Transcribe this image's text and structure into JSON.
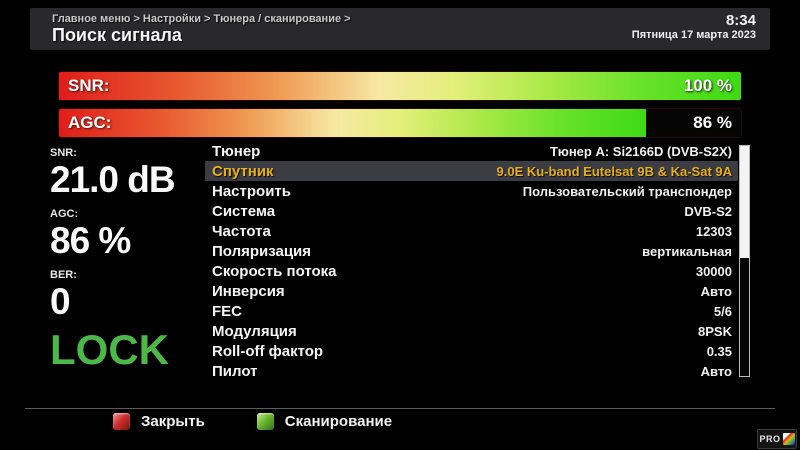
{
  "header": {
    "breadcrumb": "Главное меню > Настройки > Тюнера / сканирование >",
    "title": "Поиск сигнала",
    "time": "8:34",
    "date": "Пятница 17 марта 2023"
  },
  "gauges": [
    {
      "id": "snr",
      "label": "SNR:",
      "percent": 100,
      "percent_text": "100 %"
    },
    {
      "id": "agc",
      "label": "AGC:",
      "percent": 86,
      "percent_text": "86 %"
    }
  ],
  "readouts": [
    {
      "label": "SNR:",
      "value": "21.0 dB"
    },
    {
      "label": "AGC:",
      "value": "86 %"
    },
    {
      "label": "BER:",
      "value": "0"
    }
  ],
  "lock_status": "LOCK",
  "settings": {
    "rows": [
      {
        "label": "Тюнер",
        "value": "Тюнер A: Si2166D (DVB-S2X)",
        "selected": false
      },
      {
        "label": "Спутник",
        "value": "9.0E Ku-band Eutelsat 9B & Ka-Sat 9A",
        "selected": true
      },
      {
        "label": "Настроить",
        "value": "Пользовательский транспондер",
        "selected": false
      },
      {
        "label": "Система",
        "value": "DVB-S2",
        "selected": false
      },
      {
        "label": "Частота",
        "value": "12303",
        "selected": false
      },
      {
        "label": "Поляризация",
        "value": "вертикальная",
        "selected": false
      },
      {
        "label": "Скорость потока",
        "value": "30000",
        "selected": false
      },
      {
        "label": "Инверсия",
        "value": "Авто",
        "selected": false
      },
      {
        "label": "FEC",
        "value": "5/6",
        "selected": false
      },
      {
        "label": "Модуляция",
        "value": "8PSK",
        "selected": false
      },
      {
        "label": "Roll-off фактор",
        "value": "0.35",
        "selected": false
      },
      {
        "label": "Пилот",
        "value": "Авто",
        "selected": false
      }
    ]
  },
  "footer": {
    "buttons": [
      {
        "color": "red",
        "label": "Закрыть"
      },
      {
        "color": "green",
        "label": "Сканирование"
      }
    ]
  },
  "logo": {
    "text": "PRO"
  },
  "colors": {
    "highlight_text": "#e7b013",
    "highlight_bg": "#3c3c44",
    "lock_green": "#4cb848",
    "red_key": "#d03030",
    "green_key": "#6cb832"
  }
}
